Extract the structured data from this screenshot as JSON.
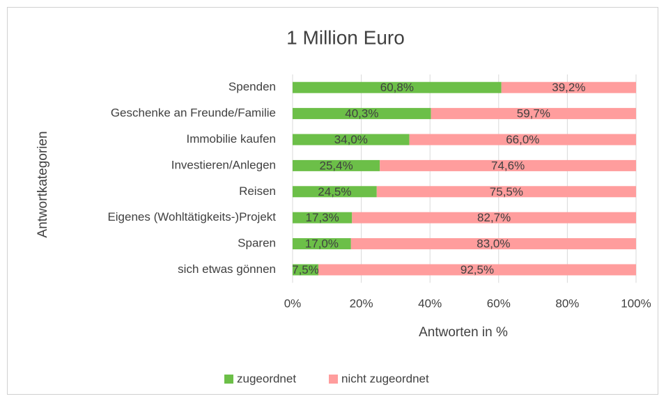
{
  "chart_data": {
    "type": "stacked_barh",
    "title": "1 Million Euro",
    "xlabel": "Antworten in %",
    "ylabel": "Antwortkategorien",
    "categories": [
      "Spenden",
      "Geschenke an Freunde/Familie",
      "Immobilie kaufen",
      "Investieren/Anlegen",
      "Reisen",
      "Eigenes (Wohltätigkeits-)Projekt",
      "Sparen",
      "sich etwas gönnen"
    ],
    "series": [
      {
        "name": "zugeordnet",
        "color": "#6cbf48",
        "values": [
          60.8,
          40.3,
          34.0,
          25.4,
          24.5,
          17.3,
          17.0,
          7.5
        ],
        "value_labels": [
          "60,8%",
          "40,3%",
          "34,0%",
          "25,4%",
          "24,5%",
          "17,3%",
          "17,0%",
          "7,5%"
        ]
      },
      {
        "name": "nicht zugeordnet",
        "color": "#ff9d9d",
        "values": [
          39.2,
          59.7,
          66.0,
          74.6,
          75.5,
          82.7,
          83.0,
          92.5
        ],
        "value_labels": [
          "39,2%",
          "59,7%",
          "66,0%",
          "74,6%",
          "75,5%",
          "82,7%",
          "83,0%",
          "92,5%"
        ]
      }
    ],
    "xlim": [
      0,
      100
    ],
    "xticks": [
      {
        "value": 0,
        "label": "0%"
      },
      {
        "value": 20,
        "label": "20%"
      },
      {
        "value": 40,
        "label": "40%"
      },
      {
        "value": 60,
        "label": "60%"
      },
      {
        "value": 80,
        "label": "80%"
      },
      {
        "value": 100,
        "label": "100%"
      }
    ],
    "grid": true,
    "legend": "bottom"
  }
}
